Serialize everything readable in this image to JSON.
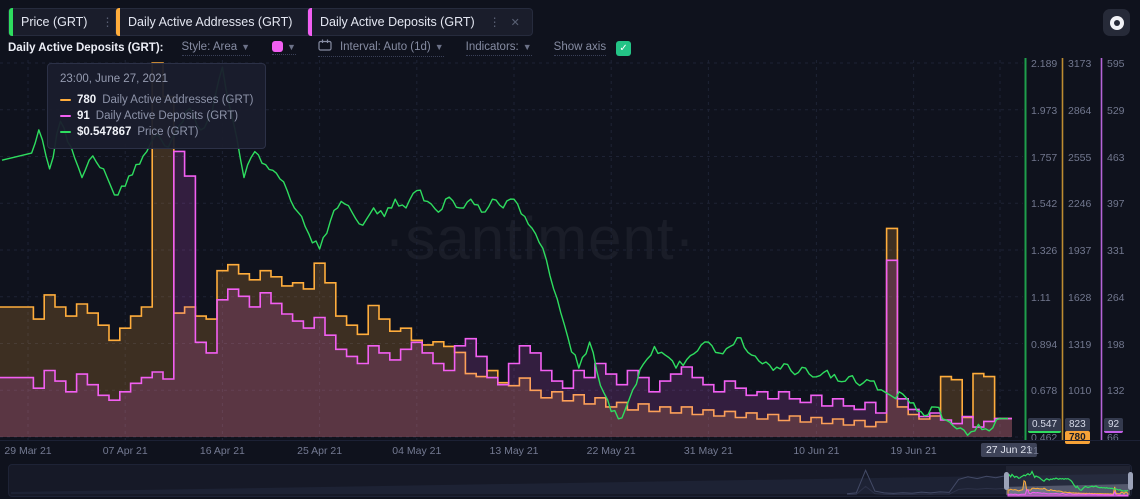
{
  "tabs": [
    {
      "label": "Price (GRT)",
      "accent": "#2edd5f"
    },
    {
      "label": "Daily Active Addresses (GRT)",
      "accent": "#ffad3c"
    },
    {
      "label": "Daily Active Deposits (GRT)",
      "accent": "#f25ff2"
    }
  ],
  "toolbar": {
    "metric_label": "Daily Active Deposits (GRT):",
    "style_label": "Style: Area",
    "swatch_color": "#f25ff2",
    "interval_label": "Interval: Auto (1d)",
    "indicators_label": "Indicators:",
    "show_axis_label": "Show axis",
    "show_axis_checked": true,
    "checkbox_color": "#24c486",
    "check_glyph": "✓"
  },
  "tooltip": {
    "datetime": "23:00, June 27, 2021",
    "rows": [
      {
        "value": "780",
        "label": "Daily Active Addresses (GRT)",
        "color": "#ffad3c"
      },
      {
        "value": "91",
        "label": "Daily Active Deposits (GRT)",
        "color": "#f25ff2"
      },
      {
        "value": "$0.547867",
        "label": "Price (GRT)",
        "color": "#2edd5f"
      }
    ]
  },
  "watermark": "·santiment·",
  "x_axis": {
    "ticks": [
      "29 Mar 21",
      "07 Apr 21",
      "16 Apr 21",
      "25 Apr 21",
      "04 May 21",
      "13 May 21",
      "22 May 21",
      "31 May 21",
      "10 Jun 21",
      "19 Jun 21",
      "27 Jun 21"
    ],
    "badge_label": "27 Jun 21",
    "stray_text": "21"
  },
  "chart_data": {
    "type": "line",
    "x_start": "2021-03-29",
    "x_end": "2021-06-27",
    "interval": "1d",
    "legend_position": "tooltip",
    "grid": true,
    "axes": {
      "price": {
        "title": "Price (GRT)",
        "color": "#2edd5f",
        "line_color": "#1f9e4c",
        "min": 0.462,
        "max": 2.189,
        "ticks": [
          "2.189",
          "1.973",
          "1.757",
          "1.542",
          "1.326",
          "1.11",
          "0.894",
          "0.678",
          "0.462"
        ],
        "badge": "0.547",
        "badge_accent": "#2edd5f"
      },
      "addresses": {
        "title": "Daily Active Addresses (GRT)",
        "color": "#ffad3c",
        "line_color": "#bd8c31",
        "min": 701,
        "max": 3173,
        "ticks": [
          "3173",
          "2864",
          "2555",
          "2246",
          "1937",
          "1628",
          "1319",
          "1010",
          "701"
        ],
        "badge": "823",
        "hover_badge": "780",
        "badge_accent": "#f6a237"
      },
      "deposits": {
        "title": "Daily Active Deposits (GRT)",
        "color": "#f25ff2",
        "line_color": "#b564d8",
        "min": 66,
        "max": 595,
        "ticks": [
          "595",
          "529",
          "463",
          "397",
          "331",
          "264",
          "198",
          "132",
          "66"
        ],
        "badge": "92",
        "badge_accent": "#c45fe8"
      }
    },
    "series": [
      {
        "name": "Daily Active Addresses (GRT)",
        "style": "step-area",
        "axis": "addresses",
        "color": "#ffad3c",
        "fill": "rgba(246,165,57,0.20)",
        "values": [
          1560,
          1480,
          1640,
          1560,
          1500,
          1580,
          1520,
          1440,
          1340,
          1420,
          1500,
          1560,
          3173,
          2950,
          1520,
          1560,
          1500,
          1480,
          1800,
          1840,
          1780,
          1740,
          1800,
          1760,
          1700,
          1720,
          1680,
          1850,
          1720,
          1500,
          1440,
          1380,
          1570,
          1480,
          1400,
          1420,
          1340,
          1310,
          1330,
          1300,
          1260,
          1120,
          1100,
          1140,
          1060,
          1040,
          1090,
          1010,
          960,
          1000,
          940,
          980,
          920,
          960,
          900,
          930,
          880,
          920,
          870,
          900,
          860,
          900,
          850,
          880,
          840,
          870,
          830,
          860,
          820,
          850,
          810,
          840,
          800,
          830,
          790,
          820,
          780,
          810,
          770,
          800,
          2080,
          900,
          850,
          820,
          840,
          1100,
          1080,
          830,
          1120,
          1100,
          823
        ]
      },
      {
        "name": "Daily Active Deposits (GRT)",
        "style": "step-area",
        "axis": "deposits",
        "color": "#f25ff2",
        "fill": "rgba(242,95,242,0.16)",
        "values": [
          150,
          135,
          160,
          145,
          130,
          155,
          140,
          125,
          118,
          130,
          142,
          150,
          158,
          148,
          470,
          435,
          200,
          185,
          260,
          275,
          265,
          250,
          270,
          255,
          240,
          230,
          220,
          235,
          210,
          190,
          180,
          170,
          195,
          185,
          175,
          190,
          200,
          185,
          170,
          160,
          195,
          205,
          180,
          150,
          140,
          170,
          195,
          185,
          160,
          145,
          135,
          160,
          150,
          170,
          155,
          140,
          160,
          150,
          130,
          145,
          155,
          165,
          150,
          140,
          130,
          145,
          135,
          125,
          130,
          120,
          130,
          120,
          115,
          125,
          110,
          120,
          110,
          105,
          115,
          100,
          316,
          120,
          105,
          95,
          100,
          90,
          85,
          95,
          80,
          88,
          92
        ]
      },
      {
        "name": "Price (GRT)",
        "style": "line",
        "axis": "price",
        "color": "#2edd5f",
        "fill": "none",
        "values": [
          1.74,
          1.88,
          1.7,
          1.92,
          1.8,
          1.66,
          1.76,
          1.7,
          1.58,
          1.62,
          1.72,
          1.78,
          1.86,
          1.8,
          1.9,
          1.98,
          1.88,
          1.95,
          2.17,
          1.92,
          1.66,
          1.78,
          1.72,
          1.68,
          1.6,
          1.5,
          1.4,
          1.33,
          1.46,
          1.55,
          1.5,
          1.44,
          1.52,
          1.48,
          1.56,
          1.52,
          1.6,
          1.55,
          1.5,
          1.57,
          1.52,
          1.56,
          1.5,
          1.56,
          1.52,
          1.56,
          1.48,
          1.4,
          1.28,
          1.1,
          0.92,
          0.78,
          0.9,
          0.7,
          0.58,
          0.55,
          0.68,
          0.8,
          0.88,
          0.84,
          0.78,
          0.82,
          0.86,
          0.9,
          0.85,
          0.88,
          0.92,
          0.84,
          0.8,
          0.77,
          0.8,
          0.75,
          0.78,
          0.74,
          0.77,
          0.72,
          0.74,
          0.7,
          0.72,
          0.68,
          0.65,
          0.66,
          0.62,
          0.56,
          0.6,
          0.54,
          0.5,
          0.47,
          0.52,
          0.49,
          0.547
        ]
      }
    ],
    "navigator": {
      "history": [
        5,
        8,
        95,
        15,
        8,
        6,
        9,
        7,
        11,
        8,
        12,
        10,
        60,
        70,
        63,
        72,
        66,
        74
      ]
    }
  }
}
